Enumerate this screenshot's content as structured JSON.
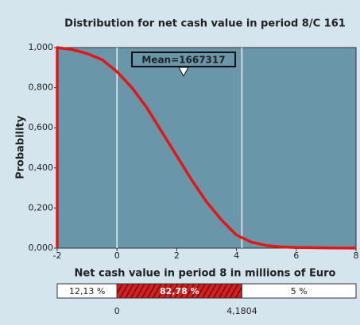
{
  "chart_data": {
    "type": "line",
    "title": "Distribution for net cash value in period 8/C 161",
    "xlabel": "Net cash value in period 8 in millions of Euro",
    "ylabel": "Probability",
    "annotation": "Mean=1667317",
    "x": [
      -2,
      -2,
      -1.5,
      -1,
      -0.5,
      0,
      0.5,
      1,
      1.5,
      2,
      2.5,
      3,
      3.5,
      4,
      4.5,
      5,
      5.5,
      6,
      7,
      8
    ],
    "values": [
      0,
      1.0,
      0.99,
      0.97,
      0.94,
      0.88,
      0.8,
      0.7,
      0.58,
      0.46,
      0.34,
      0.23,
      0.14,
      0.065,
      0.03,
      0.013,
      0.006,
      0.003,
      0.001,
      0
    ],
    "color": "#e01818",
    "xlim": [
      -2,
      8
    ],
    "xticks": [
      -2,
      0,
      2,
      4,
      6,
      8
    ],
    "ylim": [
      0,
      1
    ],
    "yticks": [
      {
        "value": 0,
        "label": "0,000"
      },
      {
        "value": 0.2,
        "label": "0,200"
      },
      {
        "value": 0.4,
        "label": "0,400"
      },
      {
        "value": 0.6,
        "label": "0,600"
      },
      {
        "value": 0.8,
        "label": "0,800"
      },
      {
        "value": 1,
        "label": "1,000"
      }
    ],
    "certainty": {
      "segments": [
        {
          "value": 12.13,
          "label": "12,13 %"
        },
        {
          "value": 82.78,
          "label": "82,78 %"
        },
        {
          "value": 5,
          "label": "5 %"
        }
      ],
      "bounds": [
        {
          "value": 0,
          "label": "0"
        },
        {
          "value": 4.1804,
          "label": "4,1804"
        }
      ]
    }
  }
}
